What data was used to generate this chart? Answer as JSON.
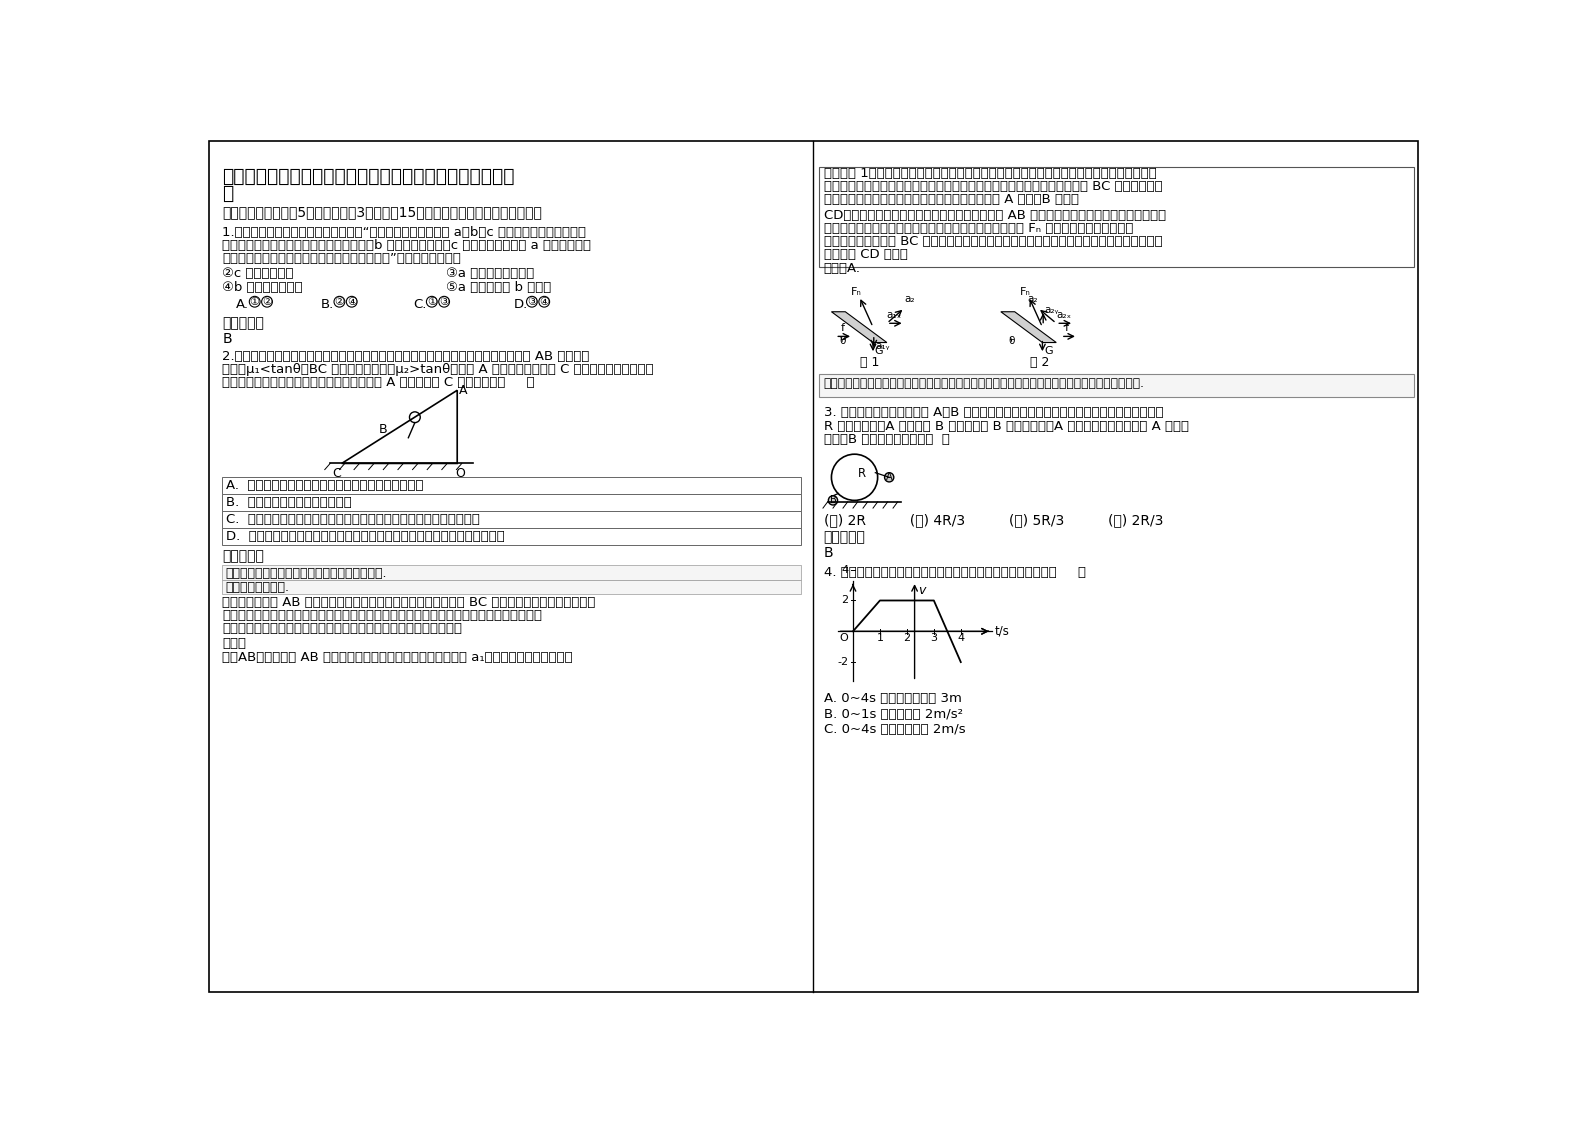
{
  "title_line1": "陕西省西安市灸桥区庆华中学高三物理下学期期末试题含解",
  "title_line2": "析",
  "section1": "一、选择题：本题兲5小题，每小题3分，共列15分。每小题只有一个选项符合题意",
  "q1_line1": "1.（单选）在一次讨论中，老师问道：“假如水中相同深度处有 a、b、c 三种不同颜色的单色点光",
  "q1_line2": "源，有人在水面上方同等条件下观测发现，b 在水下的像最深，c 照亮水面的面积比 a 的大，关于这",
  "q1_line3": "三种光在水中的性质，同学们能做出什么判断？”有同学回答如下：",
  "q1_opt1": "②c 光的频率最大",
  "q1_opt2": "③a 光的传播速度最小",
  "q1_opt3": "④b 光的折射率最大",
  "q1_opt4": "⑤a 光的波长比 b 光的短",
  "q1_ans_label": "参考答案：",
  "q1_ans": "B",
  "q2_line1": "2.（单选）某大型游乐场内的新型滑梯可以等效为如图所示的物理模型，一个小朋友在 AB 段的动摩",
  "q2_line2": "擦因数μ₁<tanθ，BC 段的动摩擦因数为μ₂>tanθ，他从 A 点开始下滑，滑到 C 点恰好静止，整个过程",
  "q2_line3": "中滑梯保持静止状态．则该小朋友从斜面顶端 A 点滑到底端 C 点的过程中（     ）",
  "q2_optA": "A.  地面对滑梯的摩擦力方向先水平向左、后水平向右",
  "q2_optB": "B.  地面对滑梯始终无摩擦力作用",
  "q2_optC": "C.  地面对滑梯的支持力的大小始终等于小朋友和滑梯的总重力的大小",
  "q2_optD": "D.  地面对滑梯的支持力的大小先大于、后小于小朋友和滑梯的总重力的大小",
  "q2_ans_label": "参考答案：",
  "exam_point": "考点：摩擦力的判断与计算；物体的弹性和弹力.",
  "topic": "专题：摩擦力专题.",
  "anal_line1": "分析：小朋友在 AB 段做匀加速直线运动，加速度沿斜面向下；在 BC 段做匀减速直线运动，加速度",
  "anal_line2": "沿斜面向上。以小朋友和滑梯整体为研究对象，将小朋友的加速度分解为水平和竖直两个方",
  "anal_line3": "向，由牛顿第二定律分析地面对滑梯的摩擦力方向和支持力的大小。",
  "sol_label": "解答：",
  "sol_line": "解：AB、小朋友在 AB 段做匀加速直线运动，将小朋友的加速度 a₁分解为水平和竖直两个方",
  "rc_line1": "向，如图 1．以小朋友和滑梯整体为研究对象，由于小朋友有水平向左的分加速度，根据牛顿",
  "rc_line2": "第二定律得知，地面对滑梯的摩擦力方向先水平向左．同理可知，小朋友在 BC 段做匀减速直",
  "rc_line3": "线运动时，地面对滑梯的摩擦力方向水平向右．故 A 正确，B 错误．",
  "rc_line4": "CD、以小朋友和滑梯整体为研究对象，小朋友在 AB 段做匀加速直线运动时，有竖直向下的",
  "rc_line5": "分加速度，则由牛顿第二定律得知，地面对滑梯的支持力 Fₙ 小于小朋友和滑梯的总重",
  "rc_line6": "力．同理，小朋友在 BC 段做匀减速直线运动时，地面对滑梯的支持力大于小朋友和滑梯的总",
  "rc_line7": "重力．故 CD 错误．",
  "rc_conclusion": "故选：A.",
  "rc_tip": "点评：本题对加速度不同的两个运用整体法处理，在中学阶段应用得不多，也可以采用隔离法研究.",
  "q3_line1": "3. 如图，可视为质点的小球 A、B 用不可伸长的细软轻绳连接，跨过固定在地面上、半径为",
  "q3_line2": "R 的光滑圆柱，A 的质量为 B 的两倍．当 B 位于地面时，A 恰与圆柱轴心等高，将 A 由静止",
  "q3_line3": "释放，B 上升的最大高度是（  ）",
  "q3_opts": "(ア) 2R          (イ) 4R/3          (ウ) 5R/3          (エ) 2R/3",
  "q3_ans_label": "参考答案：",
  "q3_ans": "B",
  "q4_line": "4. 如图是某质点的运动图像，由图像可以得出的正确结论是：（     ）",
  "q4_optA": "A. 0~4s 内的位移大小是 3m",
  "q4_optB": "B. 0~1s 内加速度是 2m/s²",
  "q4_optC": "C. 0~4s 内平均速度是 2m/s",
  "fig1_label": "图 1",
  "fig2_label": "图 2",
  "bg_color": "#ffffff"
}
